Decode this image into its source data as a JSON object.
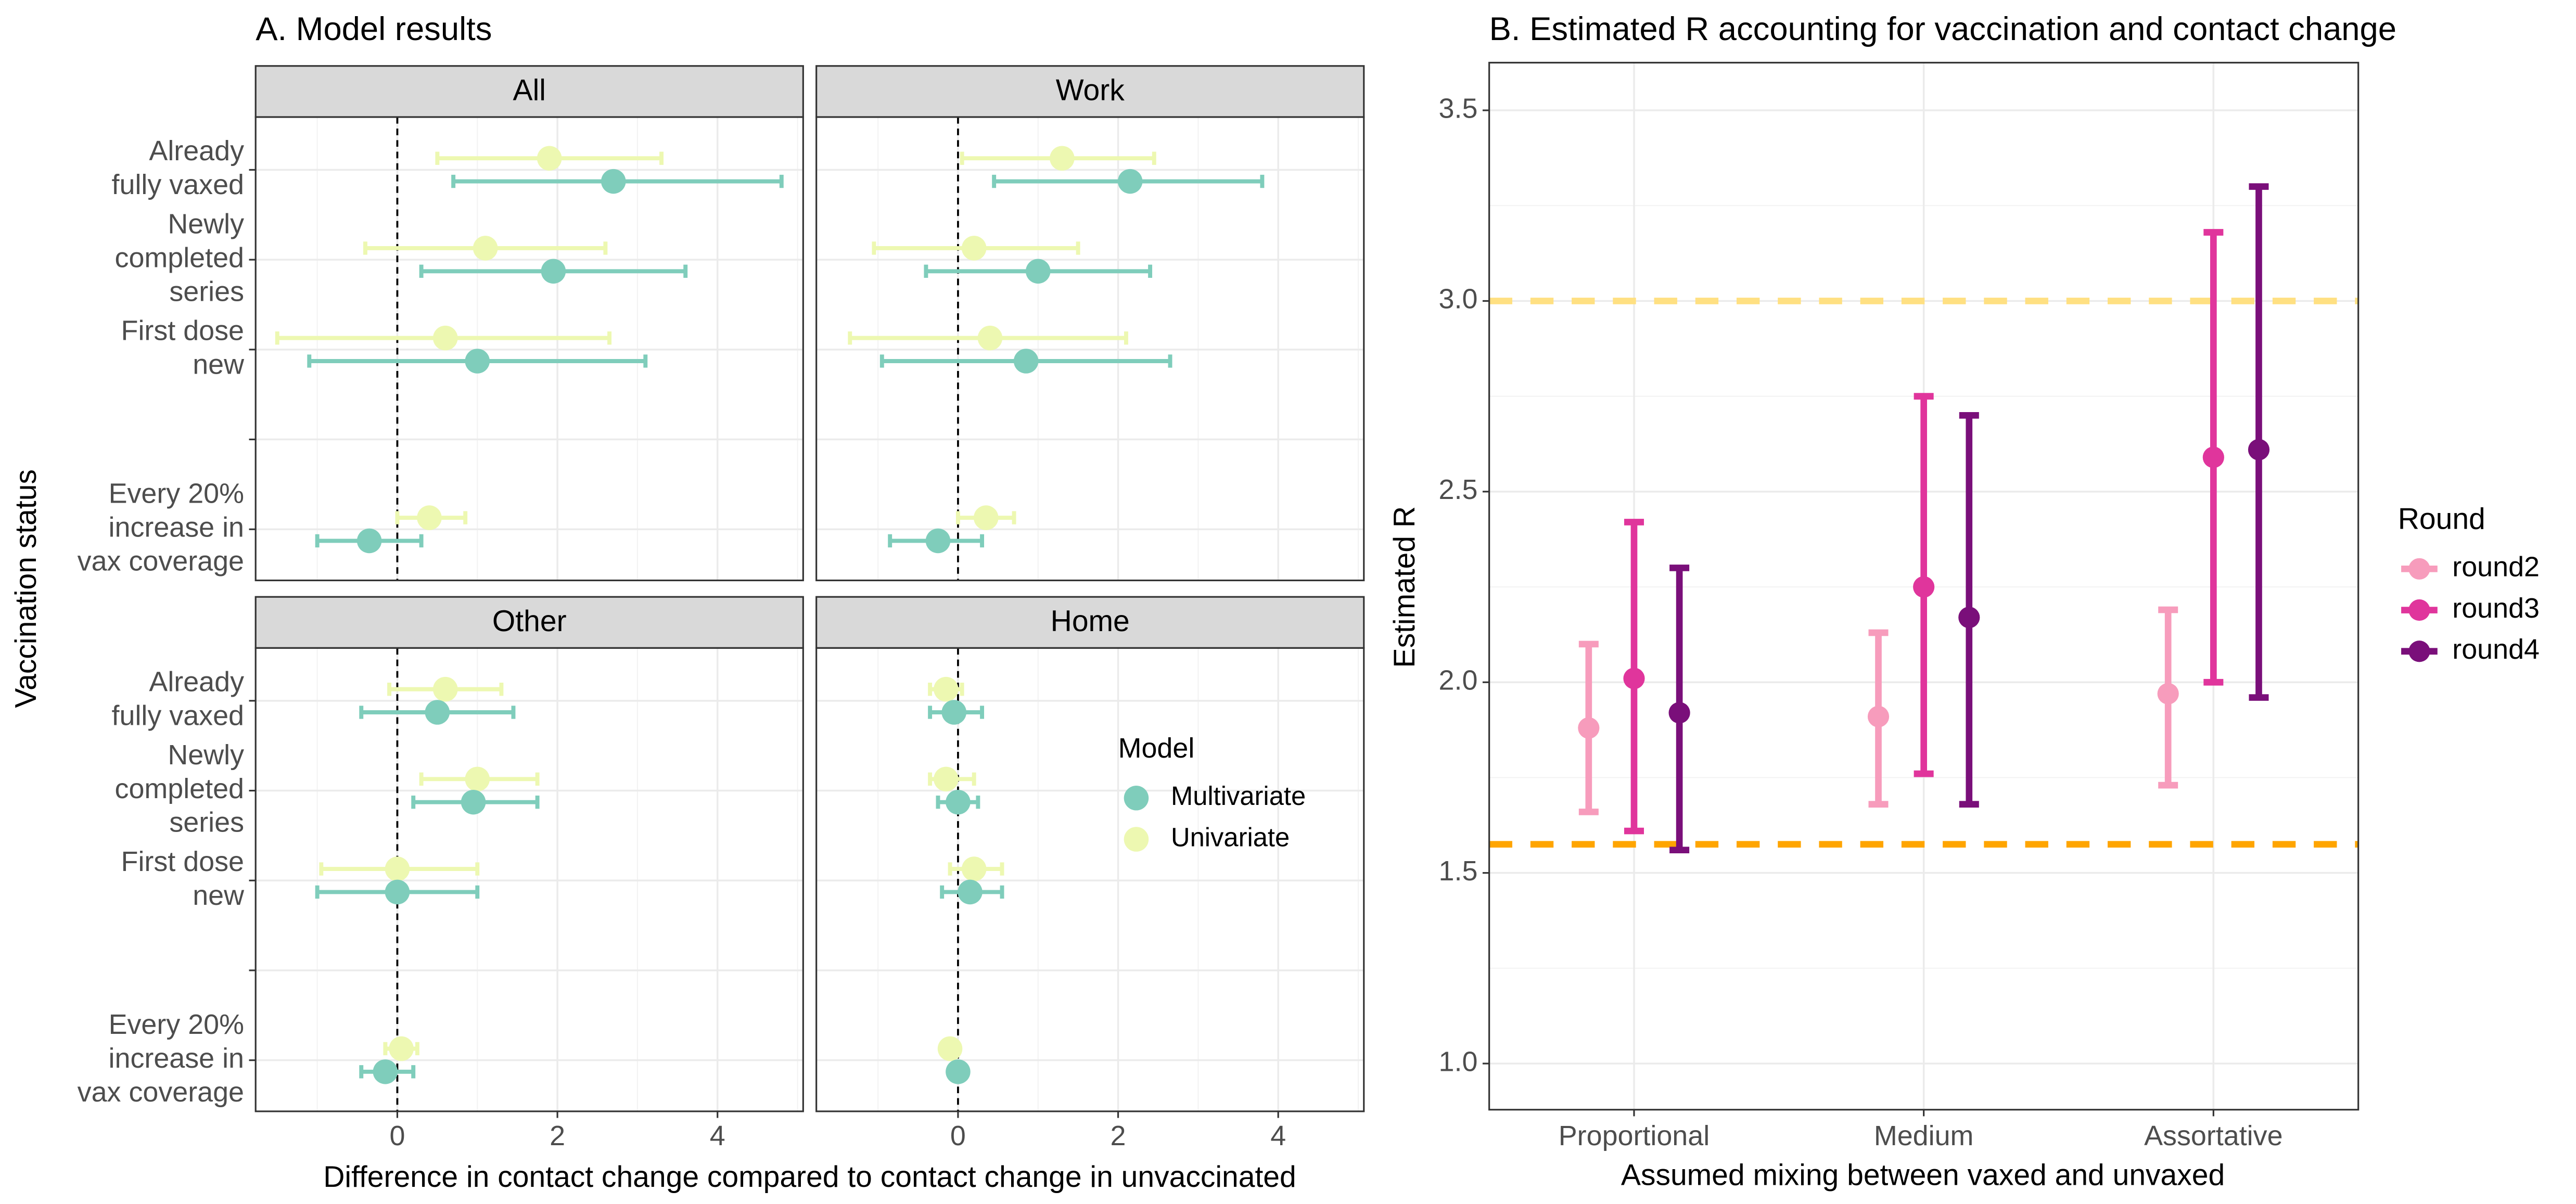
{
  "chart_data": [
    {
      "type": "forest",
      "title": "A. Model results",
      "xlabel": "Difference in contact change compared to contact change in unvaccinated",
      "ylabel": "Vaccination status",
      "categories": [
        [
          "Already",
          "fully vaxed"
        ],
        [
          "Newly",
          "completed",
          "series"
        ],
        [
          "First dose",
          "new"
        ],
        null,
        [
          "Every 20%",
          "increase in",
          "vax coverage"
        ]
      ],
      "xlim": [
        -1.77,
        5.07
      ],
      "xticks": [
        0,
        2,
        4
      ],
      "xminor": [
        -1,
        1,
        3,
        5
      ],
      "vline": 0,
      "grid": true,
      "legend_title": "Model",
      "legend_position": "inside",
      "series": [
        {
          "name": "Multivariate",
          "color": "#7fcdbb"
        },
        {
          "name": "Univariate",
          "color": "#edf8b1"
        }
      ],
      "panels": [
        {
          "name": "All",
          "series": [
            {
              "values": [
                2.7,
                1.95,
                1.0,
                null,
                -0.35
              ],
              "lower": [
                0.7,
                0.3,
                -1.1,
                null,
                -1.0
              ],
              "upper": [
                4.8,
                3.6,
                3.1,
                null,
                0.3
              ]
            },
            {
              "values": [
                1.9,
                1.1,
                0.6,
                null,
                0.4
              ],
              "lower": [
                0.5,
                -0.4,
                -1.5,
                null,
                0.0
              ],
              "upper": [
                3.3,
                2.6,
                2.65,
                null,
                0.85
              ]
            }
          ]
        },
        {
          "name": "Work",
          "series": [
            {
              "values": [
                2.15,
                1.0,
                0.85,
                null,
                -0.25
              ],
              "lower": [
                0.45,
                -0.4,
                -0.95,
                null,
                -0.85
              ],
              "upper": [
                3.8,
                2.4,
                2.65,
                null,
                0.3
              ]
            },
            {
              "values": [
                1.3,
                0.2,
                0.4,
                null,
                0.35
              ],
              "lower": [
                0.05,
                -1.05,
                -1.35,
                null,
                0.0
              ],
              "upper": [
                2.45,
                1.5,
                2.1,
                null,
                0.7
              ]
            }
          ]
        },
        {
          "name": "Other",
          "series": [
            {
              "values": [
                0.5,
                0.95,
                0.0,
                null,
                -0.15
              ],
              "lower": [
                -0.45,
                0.2,
                -1.0,
                null,
                -0.45
              ],
              "upper": [
                1.45,
                1.75,
                1.0,
                null,
                0.2
              ]
            },
            {
              "values": [
                0.6,
                1.0,
                0.0,
                null,
                0.05
              ],
              "lower": [
                -0.1,
                0.3,
                -0.95,
                null,
                -0.15
              ],
              "upper": [
                1.3,
                1.75,
                1.0,
                null,
                0.25
              ]
            }
          ]
        },
        {
          "name": "Home",
          "series": [
            {
              "values": [
                -0.05,
                0.0,
                0.15,
                null,
                0.0
              ],
              "lower": [
                -0.35,
                -0.25,
                -0.2,
                null,
                -0.05
              ],
              "upper": [
                0.3,
                0.25,
                0.55,
                null,
                0.05
              ]
            },
            {
              "values": [
                -0.15,
                -0.15,
                0.2,
                null,
                -0.1
              ],
              "lower": [
                -0.35,
                -0.35,
                -0.1,
                null,
                -0.2
              ],
              "upper": [
                0.05,
                0.2,
                0.55,
                null,
                0.0
              ]
            }
          ]
        }
      ]
    },
    {
      "type": "errorbar",
      "title": "B. Estimated R accounting for vaccination and contact change",
      "xlabel": "Assumed mixing between vaxed and unvaxed",
      "ylabel": "Estimated R",
      "categories": [
        "Proportional",
        "Medium",
        "Assortative"
      ],
      "ylim": [
        0.879,
        3.625
      ],
      "yticks": [
        {
          "value": 1.0,
          "label": "1.0"
        },
        {
          "value": 1.5,
          "label": "1.5"
        },
        {
          "value": 2.0,
          "label": "2.0"
        },
        {
          "value": 2.5,
          "label": "2.5"
        },
        {
          "value": 3.0,
          "label": "3.0"
        },
        {
          "value": 3.5,
          "label": "3.5"
        }
      ],
      "yminor": [
        1.25,
        1.75,
        2.25,
        2.75,
        3.25
      ],
      "grid": true,
      "hlines": [
        {
          "value": 3.0,
          "color": "#ffe082"
        },
        {
          "value": 1.575,
          "color": "#ffa500"
        }
      ],
      "legend_title": "Round",
      "legend_position": "right",
      "series": [
        {
          "name": "round2",
          "color": "#f79cbc",
          "values": [
            1.88,
            1.91,
            1.97
          ],
          "lower": [
            1.66,
            1.68,
            1.73
          ],
          "upper": [
            2.1,
            2.13,
            2.19
          ]
        },
        {
          "name": "round3",
          "color": "#e0359c",
          "values": [
            2.01,
            2.25,
            2.59
          ],
          "lower": [
            1.61,
            1.76,
            2.0
          ],
          "upper": [
            2.42,
            2.75,
            3.18
          ]
        },
        {
          "name": "round4",
          "color": "#7a0f7a",
          "values": [
            1.92,
            2.17,
            2.61
          ],
          "lower": [
            1.56,
            1.68,
            1.96
          ],
          "upper": [
            2.3,
            2.7,
            3.3
          ]
        }
      ]
    }
  ]
}
